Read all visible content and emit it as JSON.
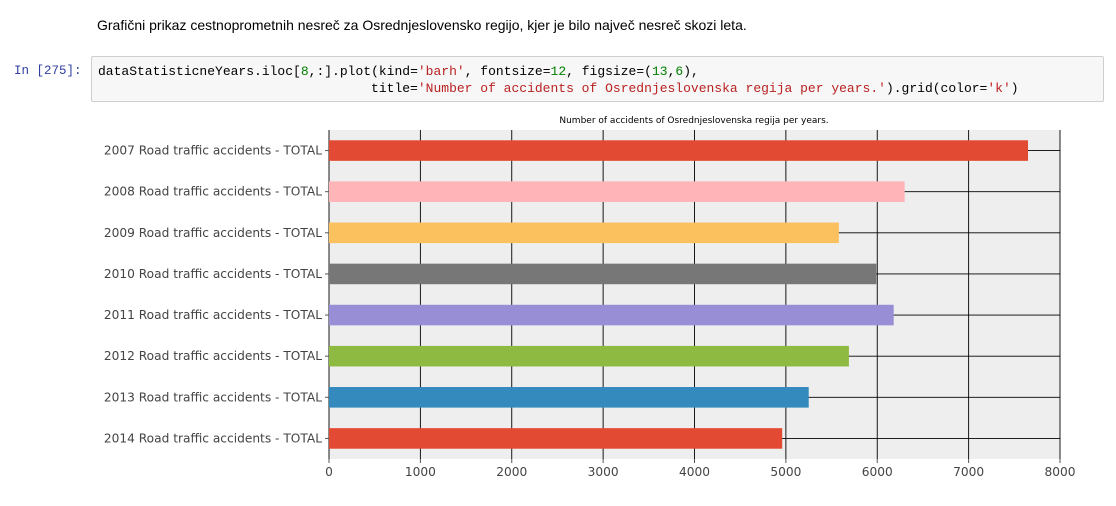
{
  "markdown": {
    "text": "Grafični prikaz cestnoprometnih nesreč za Osrednjeslovensko regijo, kjer je bilo največ nesreč skozi leta."
  },
  "cell": {
    "prompt": "In [275]:",
    "line1": {
      "a": "dataStatisticneYears.iloc[",
      "n1": "8",
      "b": ",:].plot(kind=",
      "s1": "'barh'",
      "c": ", fontsize=",
      "n2": "12",
      "d": ", figsize=(",
      "n3": "13",
      "e": ",",
      "n4": "6",
      "f": "),"
    },
    "line2": {
      "indent": "                                   ",
      "a": "title=",
      "s1": "'Number of accidents of Osrednjeslovenska regija per years.'",
      "b": ").grid(color=",
      "s2": "'k'",
      "c": ")"
    }
  },
  "chart_data": {
    "type": "bar",
    "orientation": "horizontal",
    "title": "Number of accidents of Osrednjeslovenska regija per years.",
    "categories": [
      "2007 Road traffic accidents - TOTAL",
      "2008 Road traffic accidents - TOTAL",
      "2009 Road traffic accidents - TOTAL",
      "2010 Road traffic accidents - TOTAL",
      "2011 Road traffic accidents - TOTAL",
      "2012 Road traffic accidents - TOTAL",
      "2013 Road traffic accidents - TOTAL",
      "2014 Road traffic accidents - TOTAL"
    ],
    "values": [
      7650,
      6300,
      5580,
      5990,
      6180,
      5690,
      5250,
      4960
    ],
    "colors": [
      "#e24a33",
      "#ffb5b8",
      "#fbc15e",
      "#777777",
      "#988ed5",
      "#8eba42",
      "#348abd",
      "#e24a33"
    ],
    "xlim": [
      0,
      8000
    ],
    "xticks": [
      0,
      1000,
      2000,
      3000,
      4000,
      5000,
      6000,
      7000,
      8000
    ],
    "grid": true,
    "grid_color": "#000000",
    "background": "#eeeeee"
  }
}
